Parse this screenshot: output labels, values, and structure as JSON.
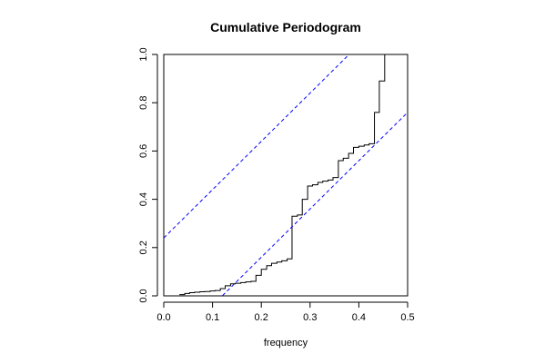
{
  "chart_data": {
    "type": "line",
    "title": "Cumulative Periodogram",
    "xlabel": "frequency",
    "ylabel": "",
    "xlim": [
      0,
      0.5
    ],
    "ylim": [
      0,
      1
    ],
    "x_ticks": [
      "0.0",
      "0.1",
      "0.2",
      "0.3",
      "0.4",
      "0.5"
    ],
    "y_ticks": [
      "0.0",
      "0.2",
      "0.4",
      "0.6",
      "0.8",
      "1.0"
    ],
    "grid": false,
    "legend": false,
    "colors": {
      "series": "#000000",
      "bands": "#0000ff"
    },
    "series": [
      {
        "style": "step",
        "x": [
          0.032,
          0.043,
          0.053,
          0.063,
          0.074,
          0.084,
          0.095,
          0.105,
          0.116,
          0.126,
          0.137,
          0.147,
          0.158,
          0.168,
          0.179,
          0.189,
          0.2,
          0.211,
          0.221,
          0.232,
          0.242,
          0.253,
          0.263,
          0.274,
          0.284,
          0.295,
          0.305,
          0.316,
          0.326,
          0.337,
          0.347,
          0.358,
          0.368,
          0.379,
          0.389,
          0.4,
          0.411,
          0.421,
          0.432,
          0.442,
          0.453,
          0.463,
          0.474,
          0.484
        ],
        "y": [
          0.005,
          0.01,
          0.013,
          0.015,
          0.017,
          0.018,
          0.02,
          0.022,
          0.03,
          0.042,
          0.05,
          0.052,
          0.055,
          0.058,
          0.06,
          0.085,
          0.11,
          0.125,
          0.135,
          0.14,
          0.145,
          0.153,
          0.33,
          0.335,
          0.4,
          0.455,
          0.46,
          0.47,
          0.475,
          0.48,
          0.49,
          0.56,
          0.57,
          0.59,
          0.615,
          0.62,
          0.625,
          0.63,
          0.76,
          0.89,
          1.0,
          1.0,
          1.0,
          1.0
        ]
      },
      {
        "style": "dashed",
        "x": [
          0,
          0.5
        ],
        "y": [
          0.24,
          1.24
        ]
      },
      {
        "style": "dashed",
        "x": [
          0,
          0.5
        ],
        "y": [
          -0.24,
          0.76
        ]
      }
    ]
  }
}
